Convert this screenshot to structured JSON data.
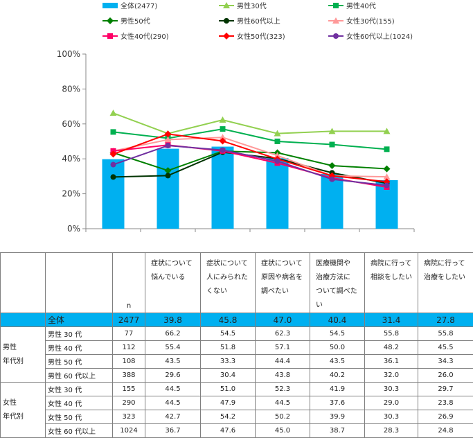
{
  "chart_data": {
    "type": "bar+line",
    "categories": [
      "症状について悩んでいる",
      "症状について人にみられたくない",
      "症状について原因や病名を調べたい",
      "医療機関や治療方法について調べたい",
      "病院に行って相談をしたい",
      "病院に行って治療をしたい"
    ],
    "ylim": [
      0,
      100
    ],
    "yticks": [
      "0%",
      "20%",
      "40%",
      "60%",
      "80%",
      "100%"
    ],
    "bar_series": {
      "name": "全体(2477)",
      "color": "#00b0f0",
      "values": [
        39.8,
        45.8,
        47.0,
        40.4,
        31.4,
        27.8
      ]
    },
    "line_series": [
      {
        "name": "男性30代",
        "color": "#92d050",
        "marker": "triangle",
        "values": [
          66.2,
          54.5,
          62.3,
          54.5,
          55.8,
          55.8
        ]
      },
      {
        "name": "男性40代",
        "color": "#00b050",
        "marker": "square",
        "values": [
          55.4,
          51.8,
          57.1,
          50.0,
          48.2,
          45.5
        ]
      },
      {
        "name": "男性50代",
        "color": "#008000",
        "marker": "diamond",
        "values": [
          43.5,
          33.3,
          44.4,
          43.5,
          36.1,
          34.3
        ]
      },
      {
        "name": "男性60代以上",
        "color": "#003300",
        "marker": "circle",
        "values": [
          29.6,
          30.4,
          43.8,
          40.2,
          32.0,
          26.0
        ]
      },
      {
        "name": "女性30代(155)",
        "color": "#ff9999",
        "marker": "triangle",
        "values": [
          44.5,
          51.0,
          52.3,
          41.9,
          30.3,
          29.7
        ]
      },
      {
        "name": "女性40代(290)",
        "color": "#ff0066",
        "marker": "square",
        "values": [
          44.5,
          47.9,
          44.5,
          37.6,
          29.0,
          23.8
        ]
      },
      {
        "name": "女性50代(323)",
        "color": "#ff0000",
        "marker": "diamond",
        "values": [
          42.7,
          54.2,
          50.2,
          39.9,
          30.3,
          26.9
        ]
      },
      {
        "name": "女性60代以上(1024)",
        "color": "#7030a0",
        "marker": "circle",
        "values": [
          36.7,
          47.6,
          45.0,
          38.7,
          28.3,
          24.8
        ]
      }
    ]
  },
  "table": {
    "n_header": "n",
    "questions": [
      [
        "症状について",
        "悩んでいる"
      ],
      [
        "症状について",
        "人にみられた",
        "くない"
      ],
      [
        "症状について",
        "原因や病名を",
        "調べたい"
      ],
      [
        "医療機関や",
        "治療方法に",
        "ついて調べた",
        "い"
      ],
      [
        "病院に行って",
        "相談をしたい"
      ],
      [
        "病院に行って",
        "治療をしたい"
      ]
    ],
    "total": {
      "label": "全体",
      "n": "2477",
      "values": [
        "39.8",
        "45.8",
        "47.0",
        "40.4",
        "31.4",
        "27.8"
      ]
    },
    "male_group": {
      "line1": "男性",
      "line2": "年代別"
    },
    "female_group": {
      "line1": "女性",
      "line2": "年代別"
    },
    "male_rows": [
      {
        "label": "男性 30 代",
        "n": "77",
        "values": [
          "66.2",
          "54.5",
          "62.3",
          "54.5",
          "55.8",
          "55.8"
        ]
      },
      {
        "label": "男性 40 代",
        "n": "112",
        "values": [
          "55.4",
          "51.8",
          "57.1",
          "50.0",
          "48.2",
          "45.5"
        ]
      },
      {
        "label": "男性 50 代",
        "n": "108",
        "values": [
          "43.5",
          "33.3",
          "44.4",
          "43.5",
          "36.1",
          "34.3"
        ]
      },
      {
        "label": "男性 60 代以上",
        "n": "388",
        "values": [
          "29.6",
          "30.4",
          "43.8",
          "40.2",
          "32.0",
          "26.0"
        ]
      }
    ],
    "female_rows": [
      {
        "label": "女性 30 代",
        "n": "155",
        "values": [
          "44.5",
          "51.0",
          "52.3",
          "41.9",
          "30.3",
          "29.7"
        ]
      },
      {
        "label": "女性 40 代",
        "n": "290",
        "values": [
          "44.5",
          "47.9",
          "44.5",
          "37.6",
          "29.0",
          "23.8"
        ]
      },
      {
        "label": "女性 50 代",
        "n": "323",
        "values": [
          "42.7",
          "54.2",
          "50.2",
          "39.9",
          "30.3",
          "26.9"
        ]
      },
      {
        "label": "女性 60 代以上",
        "n": "1024",
        "values": [
          "36.7",
          "47.6",
          "45.0",
          "38.7",
          "28.3",
          "24.8"
        ]
      }
    ]
  }
}
